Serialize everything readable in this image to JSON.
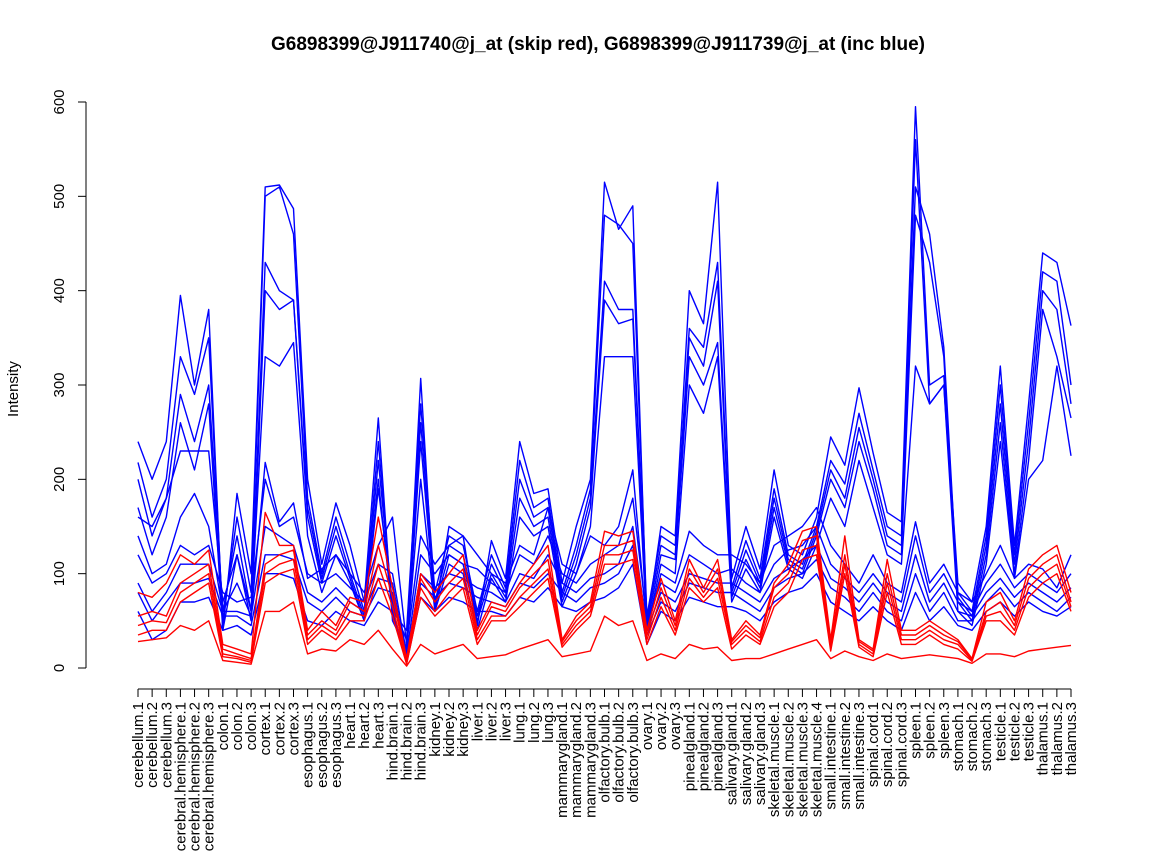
{
  "chart_data": {
    "type": "line",
    "title": "G6898399@J911740@j_at (skip red), G6898399@J911739@j_at (inc blue)",
    "xlabel": "",
    "ylabel": "Intensity",
    "ylim": [
      0,
      600
    ],
    "yticks": [
      0,
      100,
      200,
      300,
      400,
      500,
      600
    ],
    "grid": false,
    "categories": [
      "cerebellum.1",
      "cerebellum.2",
      "cerebellum.3",
      "cerebral.hemisphere.1",
      "cerebral.hemisphere.2",
      "cerebral.hemisphere.3",
      "colon.1",
      "colon.2",
      "colon.3",
      "cortex.1",
      "cortex.2",
      "cortex.3",
      "esophagus.1",
      "esophagus.2",
      "esophagus.3",
      "heart.1",
      "heart.2",
      "heart.3",
      "hind.brain.1",
      "hind.brain.2",
      "hind.brain.3",
      "kidney.1",
      "kidney.2",
      "kidney.3",
      "liver.1",
      "liver.2",
      "liver.3",
      "lung.1",
      "lung.2",
      "lung.3",
      "mammarygland.1",
      "mammarygland.2",
      "mammarygland.3",
      "olfactory.bulb.1",
      "olfactory.bulb.2",
      "olfactory.bulb.3",
      "ovary.1",
      "ovary.2",
      "ovary.3",
      "pinealgland.1",
      "pinealgland.2",
      "pinealgland.3",
      "salivary.gland.1",
      "salivary.gland.2",
      "salivary.gland.3",
      "skeletal.muscle.1",
      "skeletal.muscle.2",
      "skeletal.muscle.3",
      "skeletal.muscle.4",
      "small.intestine.1",
      "small.intestine.2",
      "small.intestine.3",
      "spinal.cord.1",
      "spinal.cord.2",
      "spinal.cord.3",
      "spleen.1",
      "spleen.2",
      "spleen.3",
      "stomach.1",
      "stomach.2",
      "stomach.3",
      "testicle.1",
      "testicle.2",
      "testicle.3",
      "thalamus.1",
      "thalamus.2",
      "thalamus.3"
    ],
    "series": [
      {
        "name": "blue-1",
        "color": "#0000ff",
        "values": [
          240,
          200,
          240,
          395,
          300,
          380,
          40,
          185,
          100,
          510,
          512,
          487,
          200,
          110,
          175,
          130,
          70,
          265,
          50,
          20,
          307,
          60,
          150,
          140,
          45,
          135,
          95,
          240,
          185,
          190,
          90,
          150,
          200,
          515,
          465,
          490,
          45,
          150,
          140,
          400,
          365,
          515,
          95,
          150,
          105,
          210,
          130,
          120,
          160,
          245,
          215,
          297,
          228,
          165,
          155,
          595,
          300,
          310,
          90,
          70,
          150,
          320,
          130,
          280,
          440,
          430,
          363
        ]
      },
      {
        "name": "blue-2",
        "color": "#0000ff",
        "values": [
          218,
          160,
          200,
          330,
          290,
          350,
          50,
          160,
          80,
          500,
          510,
          460,
          180,
          100,
          160,
          110,
          60,
          240,
          60,
          40,
          280,
          80,
          140,
          130,
          60,
          120,
          85,
          220,
          170,
          180,
          80,
          130,
          190,
          480,
          470,
          450,
          55,
          140,
          130,
          360,
          340,
          430,
          85,
          135,
          95,
          190,
          120,
          110,
          150,
          220,
          195,
          270,
          210,
          150,
          140,
          560,
          280,
          300,
          80,
          60,
          140,
          300,
          120,
          260,
          420,
          410,
          300
        ]
      },
      {
        "name": "blue-3",
        "color": "#0000ff",
        "values": [
          200,
          140,
          180,
          290,
          240,
          300,
          60,
          140,
          60,
          430,
          400,
          390,
          170,
          95,
          150,
          100,
          55,
          220,
          65,
          30,
          260,
          70,
          130,
          120,
          55,
          110,
          80,
          200,
          160,
          170,
          75,
          120,
          180,
          410,
          380,
          380,
          50,
          130,
          120,
          350,
          320,
          410,
          80,
          125,
          90,
          180,
          115,
          105,
          145,
          210,
          180,
          255,
          200,
          140,
          130,
          510,
          460,
          340,
          75,
          55,
          130,
          280,
          110,
          240,
          400,
          380,
          280
        ]
      },
      {
        "name": "blue-4",
        "color": "#0000ff",
        "values": [
          170,
          120,
          160,
          260,
          210,
          280,
          40,
          120,
          50,
          400,
          380,
          390,
          160,
          90,
          140,
          95,
          50,
          200,
          55,
          20,
          240,
          65,
          120,
          110,
          50,
          100,
          75,
          180,
          150,
          160,
          70,
          110,
          170,
          390,
          365,
          370,
          45,
          120,
          115,
          330,
          300,
          345,
          75,
          115,
          85,
          170,
          110,
          100,
          140,
          200,
          170,
          240,
          190,
          130,
          120,
          480,
          430,
          330,
          70,
          50,
          120,
          260,
          100,
          220,
          380,
          330,
          265
        ]
      },
      {
        "name": "blue-5",
        "color": "#0000ff",
        "values": [
          160,
          150,
          180,
          230,
          230,
          230,
          70,
          120,
          60,
          330,
          320,
          345,
          140,
          80,
          120,
          90,
          50,
          190,
          70,
          20,
          200,
          60,
          110,
          100,
          40,
          95,
          70,
          160,
          140,
          150,
          65,
          100,
          150,
          330,
          330,
          330,
          40,
          110,
          100,
          300,
          270,
          330,
          70,
          105,
          80,
          160,
          105,
          95,
          130,
          180,
          150,
          220,
          170,
          120,
          110,
          320,
          280,
          300,
          60,
          45,
          110,
          240,
          95,
          200,
          220,
          320,
          225
        ]
      },
      {
        "name": "blue-6",
        "color": "#0000ff",
        "values": [
          140,
          100,
          110,
          160,
          185,
          150,
          60,
          90,
          55,
          218,
          155,
          175,
          95,
          105,
          120,
          100,
          80,
          130,
          160,
          25,
          140,
          110,
          130,
          140,
          120,
          100,
          90,
          130,
          120,
          170,
          110,
          100,
          140,
          130,
          150,
          210,
          40,
          100,
          90,
          145,
          130,
          120,
          120,
          110,
          90,
          130,
          140,
          150,
          170,
          130,
          110,
          90,
          120,
          90,
          80,
          155,
          90,
          110,
          80,
          70,
          100,
          130,
          95,
          110,
          105,
          85,
          120
        ]
      },
      {
        "name": "blue-7",
        "color": "#0000ff",
        "values": [
          120,
          90,
          100,
          130,
          120,
          130,
          80,
          70,
          75,
          200,
          150,
          160,
          100,
          90,
          100,
          85,
          70,
          110,
          100,
          15,
          120,
          100,
          120,
          110,
          105,
          90,
          80,
          120,
          110,
          140,
          100,
          90,
          110,
          120,
          130,
          180,
          50,
          90,
          80,
          120,
          110,
          100,
          105,
          90,
          80,
          110,
          125,
          130,
          150,
          110,
          95,
          80,
          100,
          80,
          70,
          140,
          80,
          100,
          70,
          60,
          90,
          110,
          85,
          100,
          90,
          80,
          100
        ]
      },
      {
        "name": "blue-8",
        "color": "#0000ff",
        "values": [
          90,
          60,
          80,
          110,
          110,
          110,
          60,
          60,
          55,
          150,
          140,
          130,
          80,
          70,
          85,
          70,
          60,
          95,
          90,
          10,
          100,
          85,
          100,
          95,
          85,
          80,
          70,
          100,
          95,
          120,
          90,
          80,
          95,
          100,
          110,
          150,
          40,
          80,
          70,
          100,
          95,
          90,
          90,
          80,
          70,
          95,
          105,
          115,
          130,
          95,
          85,
          70,
          90,
          70,
          60,
          120,
          70,
          90,
          60,
          55,
          80,
          95,
          75,
          90,
          80,
          70,
          85
        ]
      },
      {
        "name": "blue-9",
        "color": "#0000ff",
        "values": [
          80,
          50,
          70,
          90,
          90,
          95,
          55,
          55,
          45,
          120,
          120,
          115,
          70,
          60,
          75,
          60,
          55,
          85,
          80,
          10,
          90,
          75,
          90,
          85,
          75,
          70,
          65,
          90,
          85,
          100,
          80,
          70,
          85,
          90,
          100,
          130,
          35,
          70,
          60,
          90,
          85,
          80,
          80,
          70,
          60,
          85,
          95,
          100,
          115,
          85,
          75,
          60,
          80,
          60,
          50,
          100,
          60,
          80,
          50,
          50,
          70,
          85,
          65,
          80,
          70,
          60,
          75
        ]
      },
      {
        "name": "blue-10",
        "color": "#0000ff",
        "values": [
          60,
          30,
          40,
          70,
          70,
          75,
          40,
          45,
          35,
          100,
          100,
          95,
          50,
          45,
          60,
          50,
          45,
          70,
          60,
          5,
          75,
          60,
          75,
          70,
          60,
          60,
          55,
          75,
          70,
          85,
          65,
          60,
          70,
          75,
          85,
          110,
          25,
          60,
          50,
          75,
          70,
          65,
          65,
          60,
          50,
          70,
          80,
          85,
          100,
          70,
          60,
          50,
          65,
          50,
          40,
          80,
          50,
          65,
          45,
          40,
          60,
          70,
          55,
          70,
          60,
          55,
          65
        ]
      },
      {
        "name": "red-1",
        "color": "#ff0000",
        "values": [
          80,
          75,
          90,
          120,
          110,
          125,
          25,
          20,
          15,
          165,
          130,
          130,
          40,
          60,
          45,
          75,
          70,
          160,
          85,
          10,
          100,
          80,
          100,
          120,
          40,
          70,
          65,
          90,
          110,
          130,
          30,
          55,
          70,
          145,
          140,
          145,
          40,
          95,
          50,
          115,
          85,
          115,
          30,
          50,
          35,
          90,
          110,
          145,
          150,
          30,
          140,
          30,
          20,
          115,
          40,
          40,
          50,
          40,
          30,
          10,
          70,
          80,
          50,
          105,
          120,
          130,
          80
        ]
      },
      {
        "name": "red-2",
        "color": "#ff0000",
        "values": [
          55,
          60,
          55,
          90,
          100,
          110,
          20,
          15,
          10,
          110,
          120,
          125,
          35,
          50,
          40,
          70,
          60,
          130,
          75,
          8,
          95,
          70,
          90,
          105,
          35,
          65,
          60,
          85,
          100,
          115,
          28,
          50,
          65,
          130,
          130,
          135,
          35,
          85,
          45,
          105,
          80,
          105,
          28,
          45,
          32,
          85,
          100,
          135,
          140,
          25,
          120,
          28,
          18,
          100,
          35,
          35,
          45,
          35,
          28,
          9,
          60,
          70,
          45,
          95,
          110,
          120,
          70
        ]
      },
      {
        "name": "red-3",
        "color": "#ff0000",
        "values": [
          45,
          50,
          48,
          80,
          90,
          100,
          15,
          12,
          8,
          100,
          110,
          115,
          30,
          45,
          35,
          60,
          55,
          110,
          65,
          5,
          85,
          60,
          80,
          95,
          30,
          55,
          55,
          75,
          90,
          105,
          25,
          45,
          60,
          120,
          120,
          125,
          30,
          75,
          40,
          95,
          75,
          95,
          25,
          40,
          28,
          75,
          90,
          125,
          130,
          20,
          110,
          25,
          15,
          90,
          30,
          30,
          40,
          30,
          25,
          8,
          55,
          60,
          40,
          85,
          100,
          110,
          65
        ]
      },
      {
        "name": "red-4",
        "color": "#ff0000",
        "values": [
          35,
          40,
          40,
          70,
          80,
          90,
          12,
          10,
          6,
          90,
          100,
          105,
          25,
          40,
          30,
          50,
          50,
          95,
          55,
          4,
          75,
          55,
          70,
          85,
          25,
          50,
          50,
          65,
          80,
          95,
          22,
          40,
          55,
          110,
          110,
          115,
          25,
          65,
          35,
          85,
          70,
          85,
          20,
          35,
          25,
          65,
          80,
          115,
          120,
          18,
          100,
          22,
          12,
          80,
          25,
          25,
          35,
          25,
          20,
          7,
          50,
          50,
          35,
          75,
          90,
          100,
          60
        ]
      },
      {
        "name": "red-5",
        "color": "#ff0000",
        "values": [
          28,
          30,
          32,
          45,
          40,
          50,
          8,
          6,
          4,
          60,
          60,
          70,
          15,
          20,
          18,
          30,
          25,
          40,
          20,
          2,
          25,
          15,
          20,
          25,
          10,
          12,
          14,
          20,
          25,
          30,
          12,
          15,
          18,
          55,
          45,
          50,
          8,
          15,
          10,
          25,
          20,
          22,
          8,
          10,
          10,
          15,
          20,
          25,
          30,
          10,
          18,
          12,
          8,
          15,
          10,
          12,
          14,
          12,
          10,
          5,
          15,
          15,
          12,
          18,
          20,
          22,
          24
        ]
      }
    ]
  }
}
